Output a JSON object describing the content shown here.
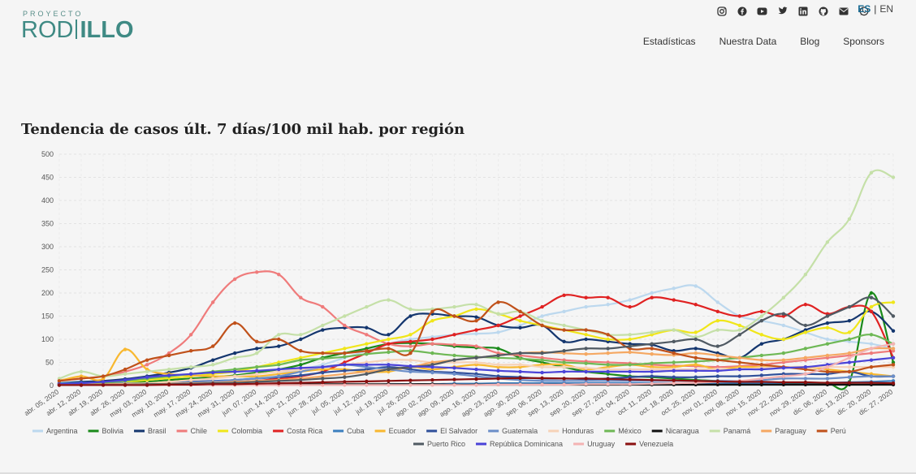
{
  "header": {
    "logo_top": "PROYECTO",
    "logo_left": "ROD",
    "logo_right": "ILLO",
    "social_icons": [
      "instagram-icon",
      "facebook-icon",
      "youtube-icon",
      "twitter-icon",
      "linkedin-icon",
      "github-icon",
      "mail-icon",
      "whatsapp-icon"
    ],
    "lang_active": "ES",
    "lang_sep": "|",
    "lang_other": "EN",
    "nav": [
      "Estadísticas",
      "Nuestra Data",
      "Blog",
      "Sponsors"
    ]
  },
  "colors": {
    "brand": "#3f8a84",
    "lang_active": "#1a6b93"
  },
  "chart_data": {
    "type": "line",
    "title": "Tendencia de casos últ. 7 días/100 mil hab. por región",
    "xlabel": "",
    "ylabel": "",
    "ylim": [
      0,
      500
    ],
    "yticks": [
      0,
      50,
      100,
      150,
      200,
      250,
      300,
      350,
      400,
      450,
      500
    ],
    "grid": true,
    "legend_position": "bottom",
    "categories": [
      "abr. 05, 2020",
      "abr. 12, 2020",
      "abr. 19, 2020",
      "abr. 26, 2020",
      "may. 03, 2020",
      "may. 10, 2020",
      "may. 17, 2020",
      "may. 24, 2020",
      "may. 31, 2020",
      "jun. 07, 2020",
      "jun. 14, 2020",
      "jun. 21, 2020",
      "jun. 28, 2020",
      "jul. 05, 2020",
      "jul. 12, 2020",
      "jul. 19, 2020",
      "jul. 26, 2020",
      "ago. 02, 2020",
      "ago. 09, 2020",
      "ago. 16, 2020",
      "ago. 23, 2020",
      "ago. 30, 2020",
      "sep. 06, 2020",
      "sep. 13, 2020",
      "sep. 20, 2020",
      "sep. 27, 2020",
      "oct. 04, 2020",
      "oct. 11, 2020",
      "oct. 18, 2020",
      "oct. 25, 2020",
      "nov. 01, 2020",
      "nov. 08, 2020",
      "nov. 15, 2020",
      "nov. 22, 2020",
      "nov. 29, 2020",
      "dic. 06, 2020",
      "dic. 13, 2020",
      "dic. 20, 2020",
      "dic. 27, 2020"
    ],
    "series": [
      {
        "name": "Argentina",
        "color": "#bcd8ee",
        "values": [
          2,
          3,
          4,
          4,
          5,
          6,
          7,
          9,
          12,
          18,
          25,
          35,
          45,
          60,
          75,
          90,
          100,
          105,
          110,
          112,
          115,
          130,
          150,
          160,
          170,
          175,
          185,
          200,
          210,
          215,
          180,
          150,
          140,
          130,
          115,
          100,
          95,
          90,
          80
        ]
      },
      {
        "name": "Bolivia",
        "color": "#1a8a1a",
        "values": [
          1,
          2,
          3,
          5,
          8,
          12,
          15,
          18,
          22,
          28,
          35,
          45,
          60,
          70,
          80,
          90,
          92,
          90,
          85,
          82,
          80,
          60,
          50,
          40,
          30,
          25,
          20,
          18,
          15,
          12,
          10,
          8,
          6,
          5,
          5,
          5,
          8,
          200,
          50
        ]
      },
      {
        "name": "Brasil",
        "color": "#14366e",
        "values": [
          5,
          8,
          10,
          14,
          20,
          28,
          38,
          55,
          70,
          80,
          85,
          100,
          120,
          125,
          125,
          110,
          150,
          155,
          150,
          148,
          130,
          125,
          130,
          95,
          100,
          95,
          90,
          88,
          75,
          80,
          70,
          60,
          90,
          100,
          120,
          135,
          140,
          160,
          118
        ]
      },
      {
        "name": "Chile",
        "color": "#ef7b7b",
        "values": [
          12,
          15,
          20,
          30,
          45,
          70,
          110,
          180,
          230,
          245,
          240,
          190,
          170,
          130,
          110,
          90,
          85,
          90,
          88,
          85,
          70,
          65,
          60,
          55,
          52,
          50,
          48,
          45,
          43,
          42,
          40,
          42,
          45,
          50,
          55,
          60,
          65,
          70,
          75
        ]
      },
      {
        "name": "Colombia",
        "color": "#f0e61a",
        "values": [
          3,
          4,
          6,
          8,
          12,
          16,
          20,
          25,
          30,
          40,
          50,
          60,
          70,
          80,
          90,
          100,
          110,
          140,
          150,
          165,
          155,
          140,
          130,
          120,
          110,
          100,
          100,
          110,
          120,
          115,
          140,
          130,
          110,
          100,
          115,
          125,
          115,
          170,
          180
        ]
      },
      {
        "name": "Costa Rica",
        "color": "#e02222",
        "values": [
          1,
          1,
          2,
          2,
          3,
          4,
          5,
          6,
          8,
          10,
          15,
          20,
          30,
          50,
          70,
          90,
          95,
          100,
          110,
          120,
          130,
          150,
          170,
          195,
          190,
          190,
          170,
          190,
          185,
          175,
          160,
          150,
          160,
          150,
          175,
          155,
          170,
          160,
          60
        ]
      },
      {
        "name": "Cuba",
        "color": "#3b7fbf",
        "values": [
          5,
          6,
          6,
          5,
          4,
          3,
          2,
          2,
          2,
          2,
          2,
          2,
          2,
          2,
          2,
          3,
          3,
          3,
          4,
          4,
          5,
          5,
          5,
          5,
          5,
          5,
          5,
          5,
          5,
          5,
          5,
          5,
          5,
          6,
          6,
          6,
          7,
          8,
          10
        ]
      },
      {
        "name": "Ecuador",
        "color": "#f8b830",
        "values": [
          10,
          20,
          15,
          78,
          35,
          25,
          22,
          20,
          20,
          20,
          25,
          30,
          35,
          35,
          30,
          30,
          40,
          35,
          40,
          45,
          40,
          40,
          45,
          45,
          35,
          40,
          45,
          40,
          40,
          45,
          35,
          40,
          40,
          40,
          40,
          35,
          30,
          25,
          20
        ]
      },
      {
        "name": "El Salvador",
        "color": "#2f4f9a",
        "values": [
          1,
          1,
          2,
          3,
          4,
          6,
          8,
          10,
          12,
          15,
          18,
          22,
          28,
          32,
          35,
          40,
          35,
          30,
          28,
          25,
          20,
          18,
          15,
          15,
          14,
          15,
          18,
          20,
          18,
          18,
          20,
          20,
          22,
          25,
          25,
          25,
          30,
          20,
          20
        ]
      },
      {
        "name": "Guatemala",
        "color": "#6b8ec8",
        "values": [
          1,
          1,
          2,
          3,
          4,
          5,
          7,
          9,
          12,
          15,
          20,
          30,
          40,
          45,
          40,
          35,
          30,
          28,
          25,
          20,
          15,
          12,
          10,
          10,
          10,
          10,
          10,
          10,
          10,
          10,
          10,
          10,
          12,
          15,
          15,
          15,
          18,
          20,
          20
        ]
      },
      {
        "name": "Honduras",
        "color": "#f6d2b8",
        "values": [
          2,
          2,
          3,
          4,
          5,
          8,
          12,
          15,
          20,
          25,
          30,
          35,
          40,
          45,
          50,
          55,
          55,
          50,
          50,
          50,
          45,
          45,
          40,
          40,
          38,
          35,
          35,
          35,
          35,
          35,
          35,
          35,
          38,
          40,
          40,
          40,
          40,
          40,
          40
        ]
      },
      {
        "name": "México",
        "color": "#6eb855",
        "values": [
          2,
          4,
          6,
          10,
          15,
          20,
          25,
          30,
          35,
          40,
          45,
          55,
          58,
          62,
          68,
          72,
          75,
          70,
          65,
          62,
          60,
          58,
          55,
          50,
          48,
          45,
          45,
          48,
          50,
          52,
          55,
          60,
          65,
          70,
          80,
          90,
          100,
          110,
          90
        ]
      },
      {
        "name": "Nicaragua",
        "color": "#111111",
        "values": [
          1,
          1,
          1,
          1,
          1,
          1,
          2,
          2,
          2,
          3,
          3,
          3,
          3,
          3,
          3,
          3,
          3,
          3,
          2,
          2,
          2,
          2,
          2,
          2,
          2,
          2,
          2,
          2,
          2,
          2,
          2,
          2,
          2,
          2,
          2,
          2,
          2,
          2,
          2
        ]
      },
      {
        "name": "Panamá",
        "color": "#c5e0a8",
        "values": [
          15,
          30,
          20,
          25,
          30,
          35,
          40,
          45,
          60,
          70,
          110,
          110,
          130,
          150,
          170,
          185,
          165,
          165,
          170,
          175,
          155,
          160,
          140,
          130,
          120,
          110,
          110,
          115,
          120,
          105,
          120,
          120,
          150,
          190,
          240,
          310,
          360,
          460,
          450
        ]
      },
      {
        "name": "Paraguay",
        "color": "#f5a862",
        "values": [
          2,
          2,
          3,
          3,
          3,
          4,
          5,
          6,
          8,
          10,
          12,
          15,
          20,
          25,
          30,
          35,
          40,
          50,
          55,
          60,
          65,
          70,
          72,
          70,
          68,
          70,
          72,
          68,
          66,
          70,
          65,
          60,
          55,
          55,
          60,
          65,
          70,
          80,
          80
        ]
      },
      {
        "name": "Perú",
        "color": "#c0511a",
        "values": [
          10,
          15,
          20,
          35,
          55,
          65,
          75,
          85,
          135,
          95,
          100,
          75,
          70,
          70,
          75,
          80,
          70,
          160,
          150,
          140,
          180,
          160,
          130,
          120,
          120,
          110,
          80,
          80,
          70,
          60,
          55,
          50,
          45,
          40,
          35,
          30,
          30,
          40,
          45
        ]
      },
      {
        "name": "Puerto Rico",
        "color": "#505a63",
        "values": [
          1,
          1,
          2,
          2,
          3,
          3,
          4,
          5,
          6,
          8,
          10,
          12,
          15,
          18,
          25,
          35,
          40,
          45,
          55,
          60,
          65,
          70,
          70,
          75,
          80,
          80,
          85,
          90,
          95,
          100,
          85,
          110,
          140,
          155,
          130,
          150,
          170,
          190,
          150
        ]
      },
      {
        "name": "República Dominicana",
        "color": "#4a43d8",
        "values": [
          3,
          5,
          8,
          12,
          18,
          22,
          25,
          28,
          30,
          32,
          35,
          38,
          40,
          45,
          45,
          45,
          42,
          40,
          38,
          35,
          32,
          30,
          28,
          30,
          30,
          30,
          30,
          30,
          32,
          32,
          32,
          35,
          35,
          38,
          40,
          45,
          50,
          55,
          60
        ]
      },
      {
        "name": "Uruguay",
        "color": "#f4b3b3",
        "values": [
          1,
          1,
          1,
          1,
          1,
          1,
          1,
          1,
          1,
          1,
          1,
          1,
          1,
          1,
          1,
          1,
          1,
          1,
          1,
          1,
          2,
          2,
          2,
          2,
          3,
          3,
          3,
          4,
          5,
          6,
          8,
          10,
          15,
          20,
          25,
          40,
          60,
          80,
          90
        ]
      },
      {
        "name": "Venezuela",
        "color": "#8a1010",
        "values": [
          1,
          1,
          1,
          1,
          1,
          2,
          2,
          3,
          3,
          4,
          5,
          6,
          7,
          8,
          9,
          10,
          11,
          12,
          13,
          14,
          15,
          16,
          16,
          15,
          15,
          14,
          13,
          12,
          11,
          10,
          9,
          8,
          8,
          7,
          7,
          6,
          6,
          6,
          5
        ]
      }
    ]
  }
}
